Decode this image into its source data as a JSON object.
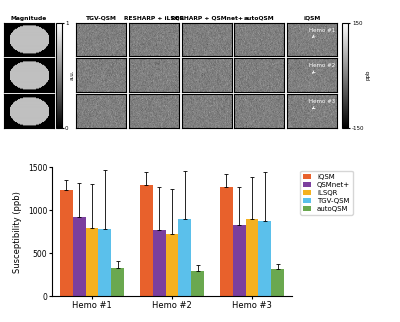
{
  "chart_data": {
    "type": "bar",
    "y_label": "Susceptibility (ppb)",
    "categories": [
      "Hemo #1",
      "Hemo #2",
      "Hemo #3"
    ],
    "series": [
      {
        "name": "iQSM",
        "color": "#e8612c",
        "values": [
          1240,
          1300,
          1270
        ],
        "error_upper": [
          110,
          150,
          150
        ]
      },
      {
        "name": "QSMnet+",
        "color": "#7b3f9e",
        "values": [
          920,
          770,
          830
        ],
        "error_upper": [
          400,
          500,
          440
        ]
      },
      {
        "name": "iLSQR",
        "color": "#f4b120",
        "values": [
          790,
          720,
          900
        ],
        "error_upper": [
          520,
          530,
          490
        ]
      },
      {
        "name": "TGV-QSM",
        "color": "#5bc0eb",
        "values": [
          780,
          900,
          880
        ],
        "error_upper": [
          690,
          560,
          570
        ]
      },
      {
        "name": "autoQSM",
        "color": "#6aa84f",
        "values": [
          330,
          290,
          320
        ],
        "error_upper": [
          80,
          70,
          60
        ]
      }
    ],
    "ylim": [
      0,
      1500
    ],
    "yticks": [
      0,
      500,
      1000,
      1500
    ],
    "legend": "upper left"
  },
  "image_panels": {
    "columns": [
      "Magnitude",
      "TGV-QSM",
      "RESHARP + iLSQR",
      "RESHARP + QSMnet+",
      "autoQSM",
      "iQSM"
    ],
    "annotations": [
      "Hemo #1",
      "Hemo #2",
      "Hemo #3"
    ],
    "colorbars": [
      {
        "label": "a.u.",
        "range": [
          0,
          1
        ],
        "ticks": [
          0,
          1
        ]
      },
      {
        "label": "ppb",
        "range": [
          -150,
          150
        ],
        "ticks": [
          -150,
          150
        ]
      }
    ]
  }
}
